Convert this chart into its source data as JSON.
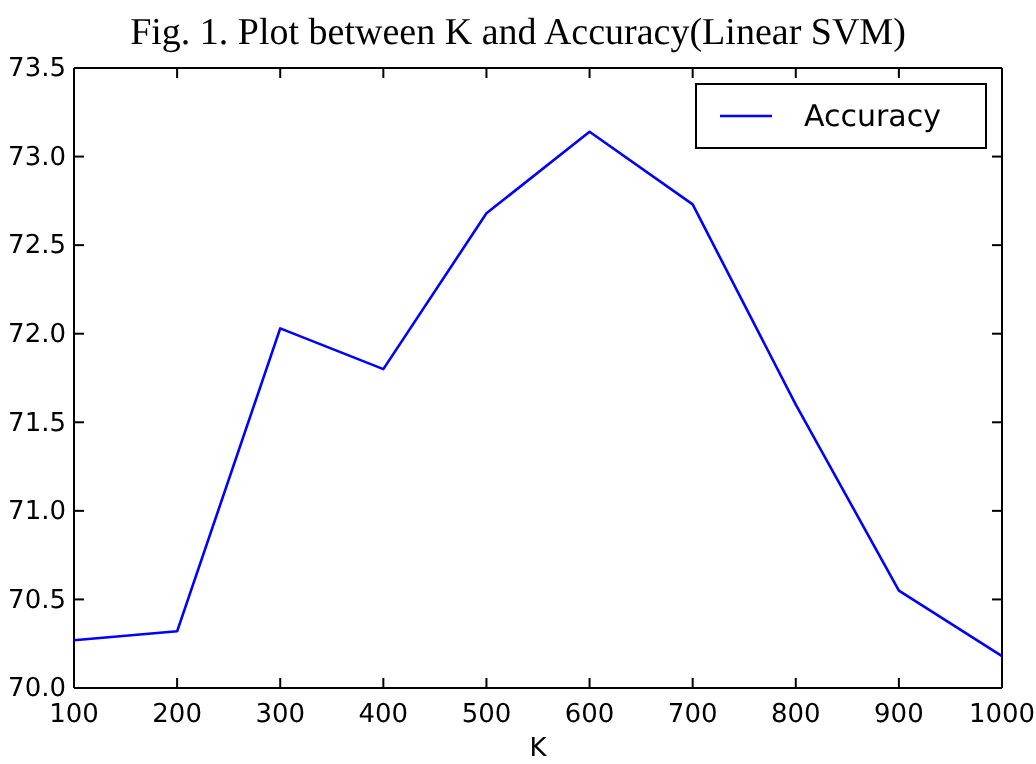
{
  "chart_data": {
    "type": "line",
    "title": "Fig. 1.  Plot between K and Accuracy(Linear SVM)",
    "xlabel": "K",
    "x": [
      100,
      200,
      300,
      400,
      500,
      600,
      700,
      800,
      900,
      1000
    ],
    "series": [
      {
        "name": "Accuracy",
        "color": "#0000ff",
        "values": [
          70.27,
          70.32,
          72.03,
          71.8,
          72.68,
          73.14,
          72.73,
          71.6,
          70.55,
          70.18
        ]
      }
    ],
    "xlim": [
      100,
      1000
    ],
    "xticks": [
      100,
      200,
      300,
      400,
      500,
      600,
      700,
      800,
      900,
      1000
    ],
    "ylim": [
      70,
      73.5
    ],
    "yticks": [
      {
        "value": 70,
        "label": "70.0"
      },
      {
        "value": 70.5,
        "label": "70.5"
      },
      {
        "value": 71,
        "label": "71.0"
      },
      {
        "value": 71.5,
        "label": "71.5"
      },
      {
        "value": 72,
        "label": "72.0"
      },
      {
        "value": 72.5,
        "label": "72.5"
      },
      {
        "value": 73,
        "label": "73.0"
      },
      {
        "value": 73.5,
        "label": "73.5"
      }
    ],
    "legend": "top right",
    "grid": false,
    "marker": "none",
    "line_style": "solid"
  }
}
